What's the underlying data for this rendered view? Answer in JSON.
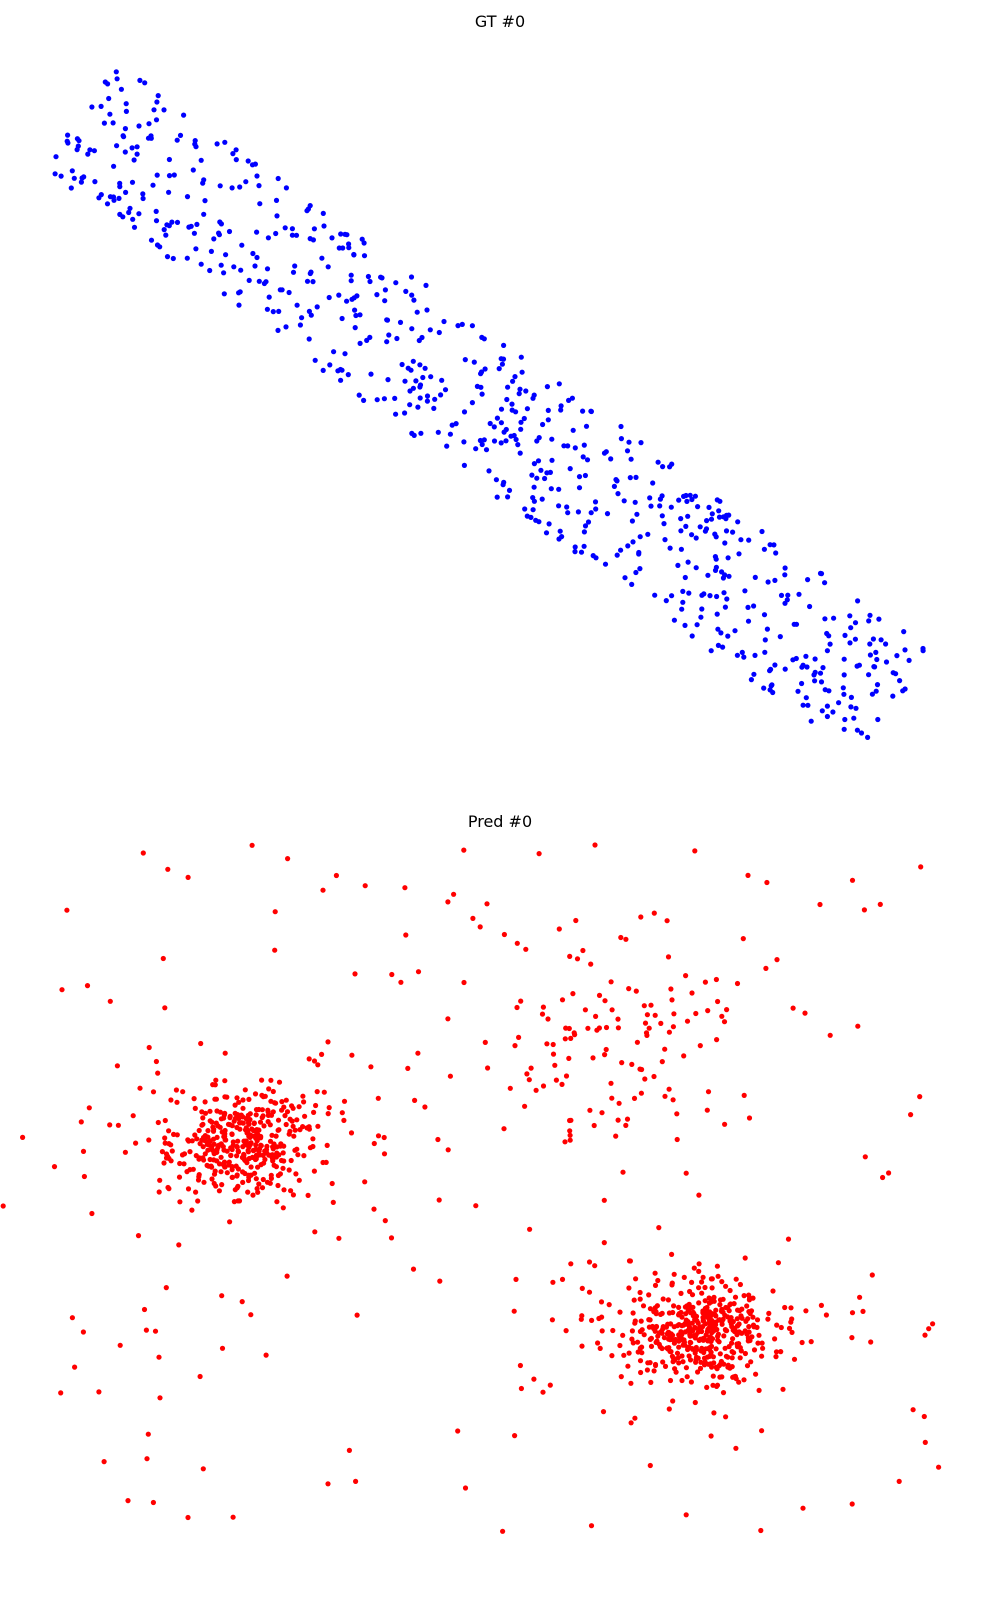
{
  "chart_data": [
    {
      "type": "scatter",
      "title": "GT #0",
      "color": "#0000ff",
      "axes_visible": false,
      "grid": false,
      "shape": "dense diagonal band of points running from upper-left to lower-right"
    },
    {
      "type": "scatter",
      "title": "Pred #0",
      "color": "#ff0000",
      "axes_visible": false,
      "grid": false,
      "shape": "two dense clusters (left-center and lower-right) with a sparse cluster at upper-right and scattered outliers"
    }
  ]
}
